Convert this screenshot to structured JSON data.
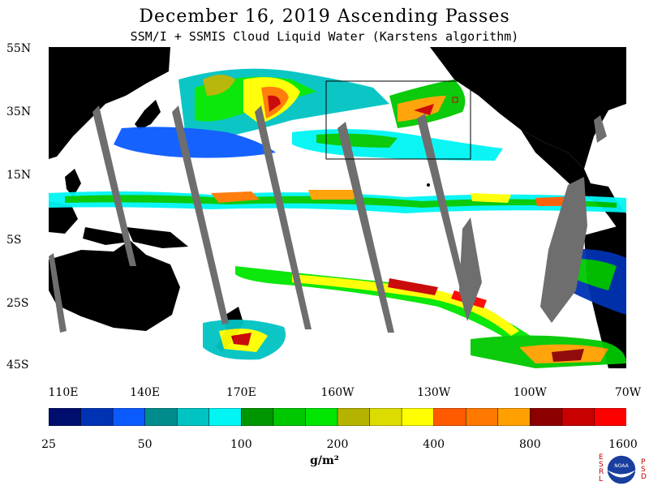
{
  "header": {
    "title": "December 16, 2019  Ascending Passes",
    "subtitle": "SSM/I + SSMIS Cloud Liquid Water (Karstens algorithm)"
  },
  "map": {
    "lat_labels": [
      "55N",
      "35N",
      "15N",
      "5S",
      "25S",
      "45S"
    ],
    "lon_labels": [
      "110E",
      "140E",
      "170E",
      "160W",
      "130W",
      "100W",
      "70W"
    ],
    "lat_range": [
      -45,
      55
    ],
    "lon_range": [
      110,
      290
    ],
    "background": "#ffffff",
    "land_color": "#000000",
    "no_data_color": "#6e6e6e"
  },
  "colorbar": {
    "colors": [
      "#000f6e",
      "#0032b4",
      "#0a5aff",
      "#008c8c",
      "#00c3c3",
      "#00f5f5",
      "#009600",
      "#00c800",
      "#00e600",
      "#b4b400",
      "#dcdc00",
      "#ffff00",
      "#ff5a00",
      "#ff7800",
      "#ffa000",
      "#8c0000",
      "#c80000",
      "#ff0000"
    ],
    "labels": [
      "25",
      "50",
      "100",
      "200",
      "400",
      "800",
      "1600"
    ],
    "units": "g/m²"
  },
  "logo": {
    "left_letters": "ESRL",
    "right_letters": "PSD",
    "center_text": "NOAA"
  }
}
